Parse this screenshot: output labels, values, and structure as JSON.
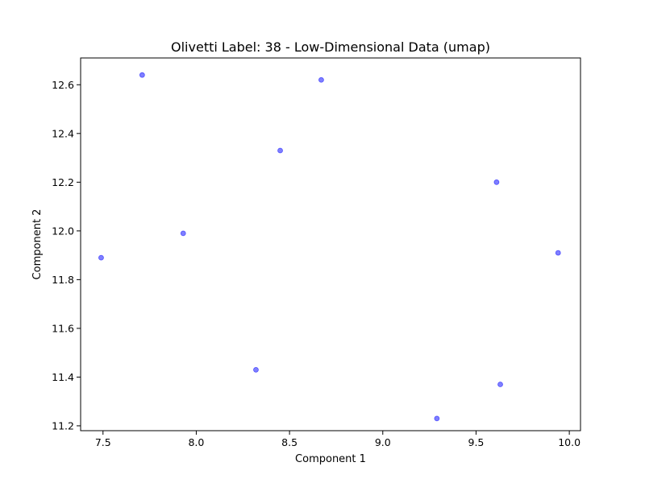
{
  "chart_data": {
    "type": "scatter",
    "title": "Olivetti Label: 38 - Low-Dimensional Data (umap)",
    "xlabel": "Component 1",
    "ylabel": "Component 2",
    "xlim": [
      7.38,
      10.06
    ],
    "ylim": [
      11.18,
      12.71
    ],
    "xticks": [
      7.5,
      8.0,
      8.5,
      9.0,
      9.5,
      10.0
    ],
    "xtick_labels": [
      "7.5",
      "8.0",
      "8.5",
      "9.0",
      "9.5",
      "10.0"
    ],
    "yticks": [
      11.2,
      11.4,
      11.6,
      11.8,
      12.0,
      12.2,
      12.4,
      12.6
    ],
    "ytick_labels": [
      "11.2",
      "11.4",
      "11.6",
      "11.8",
      "12.0",
      "12.2",
      "12.4",
      "12.6"
    ],
    "grid": false,
    "marker_color": "#0000ff",
    "marker_opacity": 0.5,
    "series": [
      {
        "points": [
          {
            "x": 7.71,
            "y": 12.64
          },
          {
            "x": 8.67,
            "y": 12.62
          },
          {
            "x": 8.45,
            "y": 12.33
          },
          {
            "x": 9.61,
            "y": 12.2
          },
          {
            "x": 7.93,
            "y": 11.99
          },
          {
            "x": 7.49,
            "y": 11.89
          },
          {
            "x": 9.94,
            "y": 11.91
          },
          {
            "x": 8.32,
            "y": 11.43
          },
          {
            "x": 9.63,
            "y": 11.37
          },
          {
            "x": 9.29,
            "y": 11.23
          }
        ]
      }
    ]
  }
}
